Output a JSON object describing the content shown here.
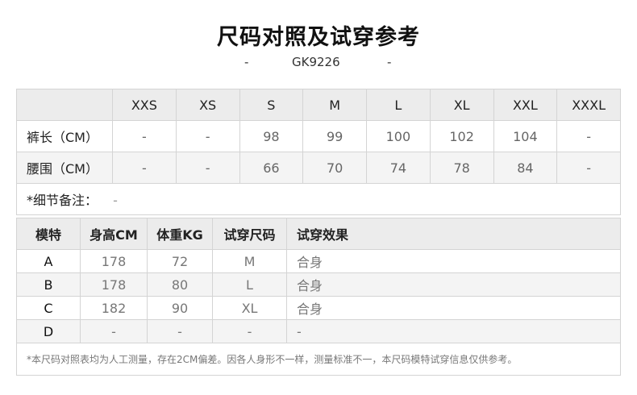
{
  "title": "尺码对照及试穿参考",
  "subtitle": {
    "left_dash": "-",
    "code": "GK9226",
    "right_dash": "-"
  },
  "size_table": {
    "sizes": [
      "XXS",
      "XS",
      "S",
      "M",
      "L",
      "XL",
      "XXL",
      "XXXL"
    ],
    "rows": [
      {
        "label": "裤长（CM）",
        "values": [
          "-",
          "-",
          "98",
          "99",
          "100",
          "102",
          "104",
          "-"
        ]
      },
      {
        "label": "腰围（CM）",
        "values": [
          "-",
          "-",
          "66",
          "70",
          "74",
          "78",
          "84",
          "-"
        ]
      }
    ],
    "note_label": "*细节备注：",
    "note_value": "-"
  },
  "model_table": {
    "headers": [
      "模特",
      "身高CM",
      "体重KG",
      "试穿尺码",
      "试穿效果"
    ],
    "rows": [
      [
        "A",
        "178",
        "72",
        "M",
        "合身"
      ],
      [
        "B",
        "178",
        "80",
        "L",
        "合身"
      ],
      [
        "C",
        "182",
        "90",
        "XL",
        "合身"
      ],
      [
        "D",
        "-",
        "-",
        "-",
        "-"
      ]
    ],
    "footnote": "*本尺码对照表均为人工测量，存在2CM偏差。因各人身形不一样，测量标准不一，本尺码模特试穿信息仅供参考。"
  }
}
